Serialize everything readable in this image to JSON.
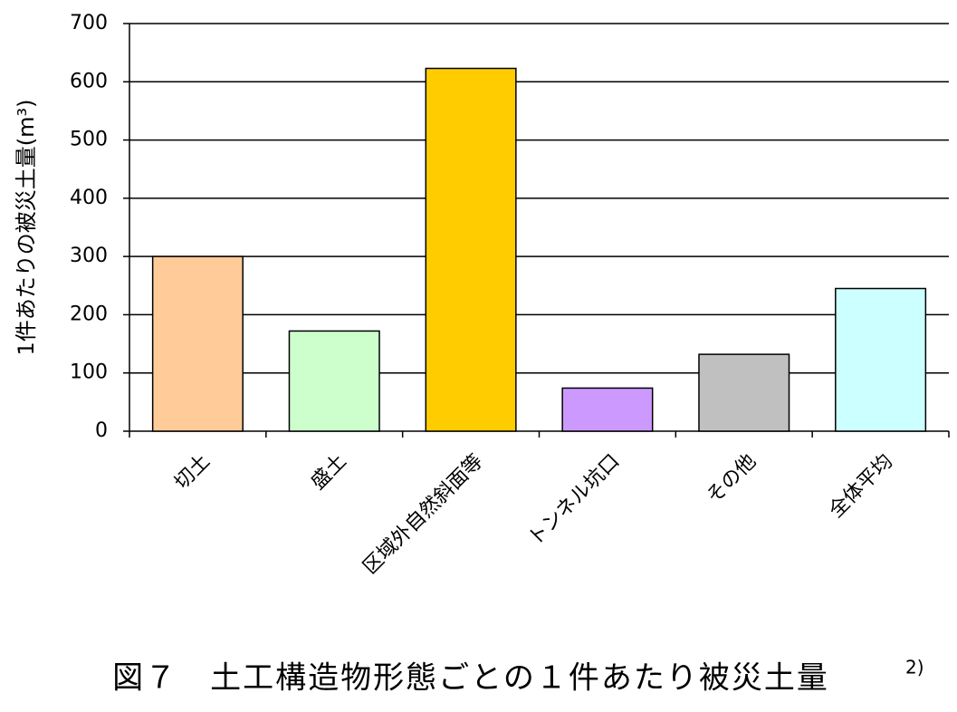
{
  "chart_data": {
    "type": "bar",
    "title": "図７　土工構造物形態ごとの１件あたり被災土量",
    "title_ref": "2)",
    "y_label": "1件あたりの被災土量(m³)",
    "categories": [
      "切土",
      "盛土",
      "区域外自然斜面等",
      "トンネル坑口",
      "その他",
      "全体平均"
    ],
    "values": [
      300,
      172,
      623,
      74,
      132,
      245
    ],
    "colors": [
      "#ffcc99",
      "#ccffcc",
      "#ffcc00",
      "#cc99ff",
      "#c0c0c0",
      "#ccffff"
    ],
    "ylim": [
      0,
      700
    ],
    "yticks": [
      0,
      100,
      200,
      300,
      400,
      500,
      600,
      700
    ],
    "grid": true
  }
}
